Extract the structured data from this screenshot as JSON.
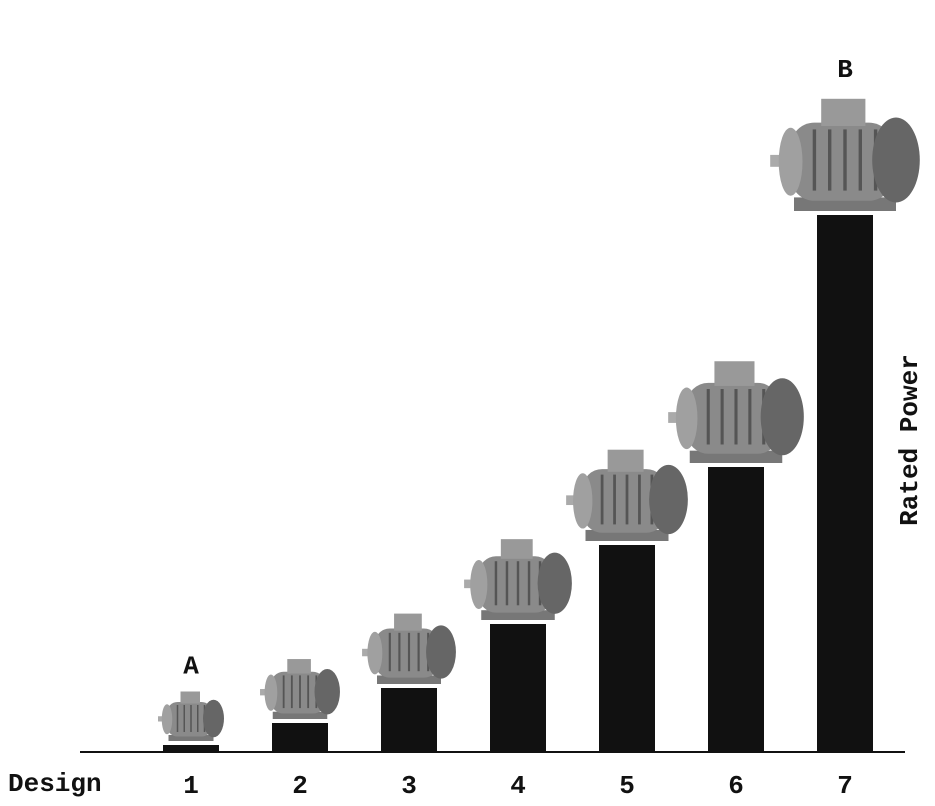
{
  "chart_data": {
    "type": "bar",
    "x_label": "Design",
    "y_label": "Rated Power",
    "categories": [
      "1",
      "2",
      "3",
      "4",
      "5",
      "6",
      "7"
    ],
    "values": [
      7,
      29,
      64,
      128,
      207,
      285,
      537
    ],
    "color": "#111111",
    "ylim": [
      0,
      540
    ],
    "annotations": [
      {
        "text": "A",
        "category": 0
      },
      {
        "text": "B",
        "category": 6
      }
    ]
  }
}
